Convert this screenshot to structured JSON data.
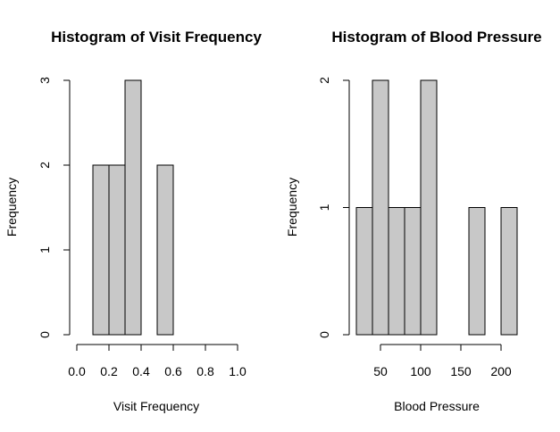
{
  "chart_data": [
    {
      "type": "bar",
      "title": "Histogram of Visit Frequency",
      "xlabel": "Visit Frequency",
      "ylabel": "Frequency",
      "bin_edges": [
        0.0,
        0.1,
        0.2,
        0.3,
        0.4,
        0.5,
        0.6,
        0.7,
        0.8,
        0.9,
        1.0
      ],
      "values": [
        0,
        2,
        2,
        3,
        0,
        2,
        0,
        0,
        0,
        0
      ],
      "xlim": [
        0.0,
        1.0
      ],
      "ylim": [
        0,
        3
      ],
      "xticks": [
        "0.0",
        "0.2",
        "0.4",
        "0.6",
        "0.8",
        "1.0"
      ],
      "xtick_values": [
        0.0,
        0.2,
        0.4,
        0.6,
        0.8,
        1.0
      ],
      "yticks": [
        "0",
        "1",
        "2",
        "3"
      ],
      "ytick_values": [
        0,
        1,
        2,
        3
      ],
      "bar_color": "#c8c8c8",
      "grid": false
    },
    {
      "type": "bar",
      "title": "Histogram of Blood Pressure",
      "xlabel": "Blood Pressure",
      "ylabel": "Frequency",
      "bin_edges": [
        20,
        40,
        60,
        80,
        100,
        120,
        140,
        160,
        180,
        200,
        220
      ],
      "values": [
        1,
        2,
        1,
        1,
        2,
        0,
        0,
        1,
        0,
        1
      ],
      "xlim": [
        20,
        220
      ],
      "ylim": [
        0,
        2
      ],
      "xticks": [
        "50",
        "100",
        "150",
        "200"
      ],
      "xtick_values": [
        50,
        100,
        150,
        200
      ],
      "yticks": [
        "0",
        "1",
        "2"
      ],
      "ytick_values": [
        0,
        1,
        2
      ],
      "bar_color": "#c8c8c8",
      "grid": false
    }
  ]
}
